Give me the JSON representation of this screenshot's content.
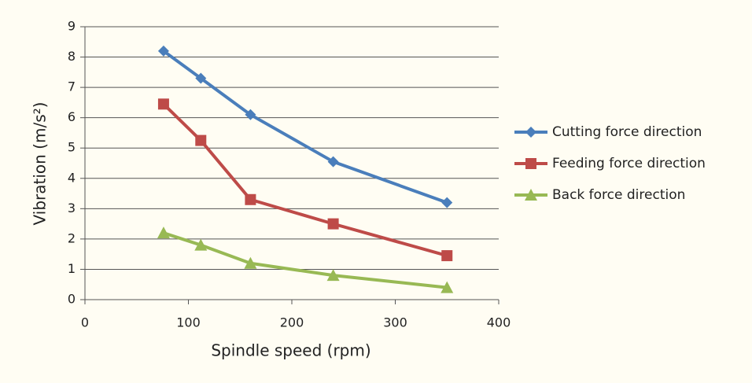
{
  "chart_data": {
    "type": "line",
    "xlabel": "Spindle speed (rpm)",
    "ylabel": "Vibration (m/s²)",
    "xlim": [
      0,
      400
    ],
    "xticks": [
      0,
      100,
      200,
      300,
      400
    ],
    "ylim": [
      0,
      9
    ],
    "yticks": [
      0,
      1,
      2,
      3,
      4,
      5,
      6,
      7,
      8,
      9
    ],
    "grid": true,
    "legend": "right",
    "series": [
      {
        "name": "Cutting force direction",
        "color": "#4a7ebb",
        "marker": "diamond",
        "x": [
          76,
          112,
          160,
          240,
          350
        ],
        "values": [
          8.2,
          7.3,
          6.1,
          4.55,
          3.2
        ]
      },
      {
        "name": "Feeding force direction",
        "color": "#be4b48",
        "marker": "square",
        "x": [
          76,
          112,
          160,
          240,
          350
        ],
        "values": [
          6.45,
          5.25,
          3.3,
          2.5,
          1.45
        ]
      },
      {
        "name": "Back force direction",
        "color": "#98b954",
        "marker": "triangle",
        "x": [
          76,
          112,
          160,
          240,
          350
        ],
        "values": [
          2.2,
          1.8,
          1.2,
          0.8,
          0.4
        ]
      }
    ]
  }
}
